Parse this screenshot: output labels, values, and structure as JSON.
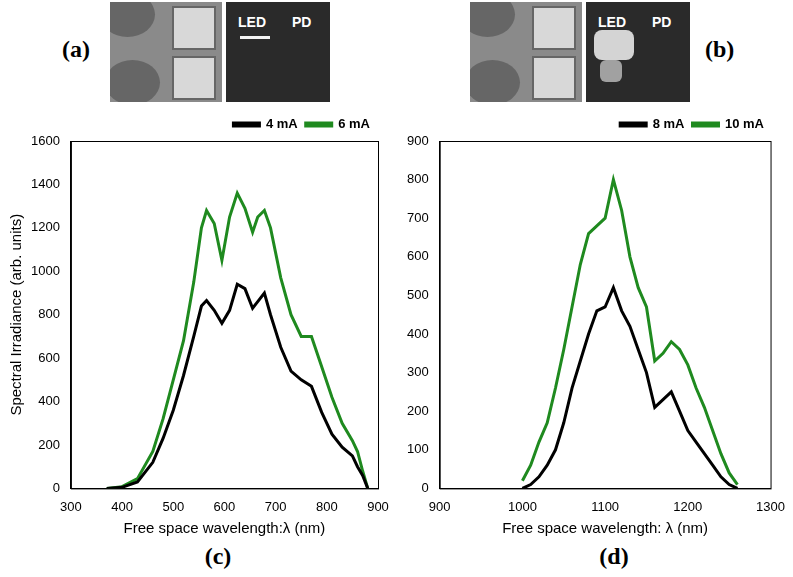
{
  "images": [
    {
      "panel": "(a)",
      "labels": [
        "LED",
        "PD"
      ]
    },
    {
      "panel": "(b)",
      "labels": [
        "LED",
        "PD"
      ]
    }
  ],
  "chart_data": [
    {
      "type": "line",
      "panel": "(c)",
      "x_label": "Free space wavelength:λ (nm)",
      "y_label": "Spectral Irradiance (arb. units)",
      "x": [
        370,
        400,
        430,
        460,
        480,
        500,
        520,
        540,
        555,
        565,
        580,
        595,
        610,
        625,
        640,
        655,
        665,
        678,
        690,
        710,
        730,
        750,
        770,
        790,
        810,
        830,
        850,
        860,
        870,
        880
      ],
      "series": [
        {
          "name": "4 mA",
          "color": "#000000",
          "values": [
            0,
            5,
            30,
            120,
            230,
            360,
            520,
            700,
            840,
            865,
            820,
            760,
            820,
            940,
            920,
            830,
            860,
            900,
            800,
            650,
            540,
            500,
            470,
            350,
            250,
            190,
            150,
            100,
            60,
            0
          ]
        },
        {
          "name": "6 mA",
          "color": "#1f8a1f",
          "values": [
            0,
            8,
            45,
            170,
            320,
            500,
            680,
            950,
            1200,
            1280,
            1220,
            1050,
            1250,
            1360,
            1290,
            1180,
            1250,
            1280,
            1200,
            970,
            800,
            700,
            700,
            560,
            420,
            300,
            220,
            170,
            80,
            0
          ]
        }
      ],
      "xlim": [
        300,
        900
      ],
      "xticks": [
        300,
        400,
        500,
        600,
        700,
        800,
        900
      ],
      "ylim": [
        0,
        1600
      ],
      "yticks": [
        0,
        200,
        400,
        600,
        800,
        1000,
        1200,
        1400,
        1600
      ],
      "grid": false,
      "legend": "upper right"
    },
    {
      "type": "line",
      "panel": "(d)",
      "x_label": "Free space wavelength: λ (nm)",
      "x": [
        1000,
        1010,
        1020,
        1030,
        1040,
        1050,
        1060,
        1070,
        1080,
        1090,
        1100,
        1110,
        1120,
        1130,
        1140,
        1150,
        1160,
        1170,
        1180,
        1190,
        1200,
        1210,
        1220,
        1230,
        1240,
        1250,
        1260
      ],
      "series": [
        {
          "name": "8 mA",
          "color": "#000000",
          "values": [
            0,
            10,
            30,
            60,
            100,
            170,
            260,
            330,
            400,
            460,
            470,
            520,
            460,
            420,
            360,
            300,
            210,
            230,
            250,
            200,
            150,
            120,
            90,
            60,
            30,
            10,
            0
          ]
        },
        {
          "name": "10 mA",
          "color": "#1f8a1f",
          "values": [
            20,
            60,
            120,
            170,
            260,
            360,
            470,
            580,
            660,
            680,
            700,
            800,
            720,
            600,
            520,
            470,
            330,
            350,
            380,
            360,
            320,
            260,
            210,
            150,
            90,
            40,
            10
          ]
        }
      ],
      "xlim": [
        900,
        1300
      ],
      "xticks": [
        900,
        1000,
        1100,
        1200,
        1300
      ],
      "ylim": [
        0,
        900
      ],
      "yticks": [
        0,
        100,
        200,
        300,
        400,
        500,
        600,
        700,
        800,
        900
      ],
      "grid": false,
      "legend": "upper right"
    }
  ]
}
